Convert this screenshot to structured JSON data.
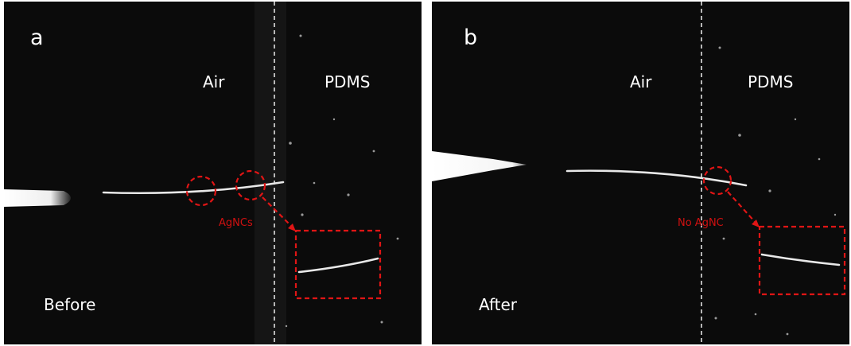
{
  "panels": [
    {
      "label": "a",
      "media": [
        "Air",
        "PDMS"
      ],
      "annotation": "AgNCs",
      "caption": "Before"
    },
    {
      "label": "b",
      "media": [
        "Air",
        "PDMS"
      ],
      "annotation": "No AgNC",
      "caption": "After"
    }
  ]
}
